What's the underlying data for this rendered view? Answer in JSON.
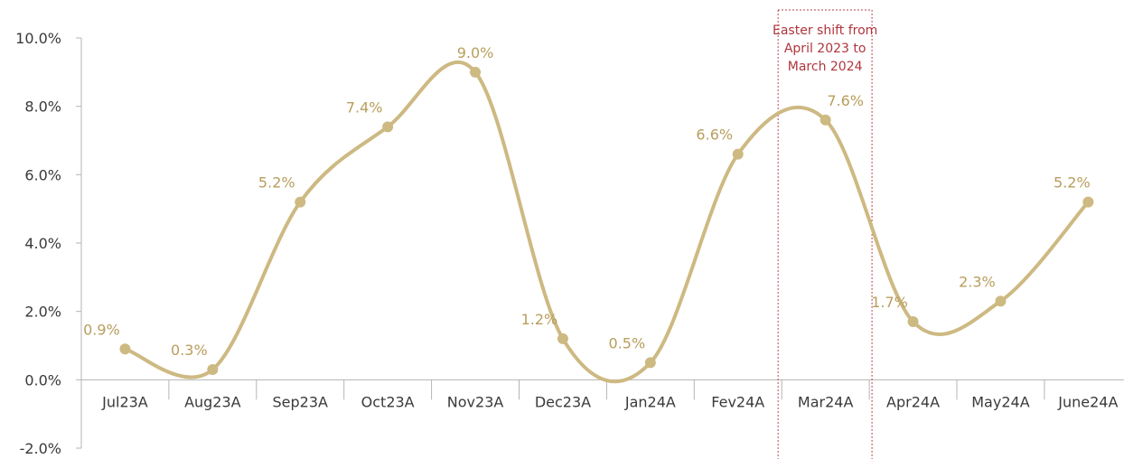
{
  "chart_data": {
    "type": "line",
    "categories": [
      "Jul23A",
      "Aug23A",
      "Sep23A",
      "Oct23A",
      "Nov23A",
      "Dec23A",
      "Jan24A",
      "Fev24A",
      "Mar24A",
      "Apr24A",
      "May24A",
      "June24A"
    ],
    "series": [
      {
        "values": [
          0.9,
          0.3,
          5.2,
          7.4,
          9.0,
          1.2,
          0.5,
          6.6,
          7.6,
          1.7,
          2.3,
          5.2
        ],
        "labels": [
          "0.9%",
          "0.3%",
          "5.2%",
          "7.4%",
          "9.0%",
          "1.2%",
          "0.5%",
          "6.6%",
          "7.6%",
          "1.7%",
          "2.3%",
          "5.2%"
        ]
      }
    ],
    "ylim": [
      -2,
      10
    ],
    "y_ticks": [
      10,
      8,
      6,
      4,
      2,
      0,
      -2
    ],
    "y_tick_labels": [
      "10.0%",
      "8.0%",
      "6.0%",
      "4.0%",
      "2.0%",
      "0.0%",
      "-2.0%"
    ],
    "title": "",
    "xlabel": "",
    "ylabel": "",
    "grid": false,
    "legend": "none",
    "annotation": {
      "text": "Easter shift from April 2023 to March 2024",
      "lines": [
        "Easter shift from",
        "April 2023 to",
        "March 2024"
      ],
      "spans_category": "Mar24A",
      "style": "dotted box"
    }
  },
  "colors": {
    "line": "#cdb982",
    "label": "#b89e5c",
    "axis": "#b5b5b5",
    "annotation": "#b0353d",
    "tick_text": "#3a3a3a"
  }
}
